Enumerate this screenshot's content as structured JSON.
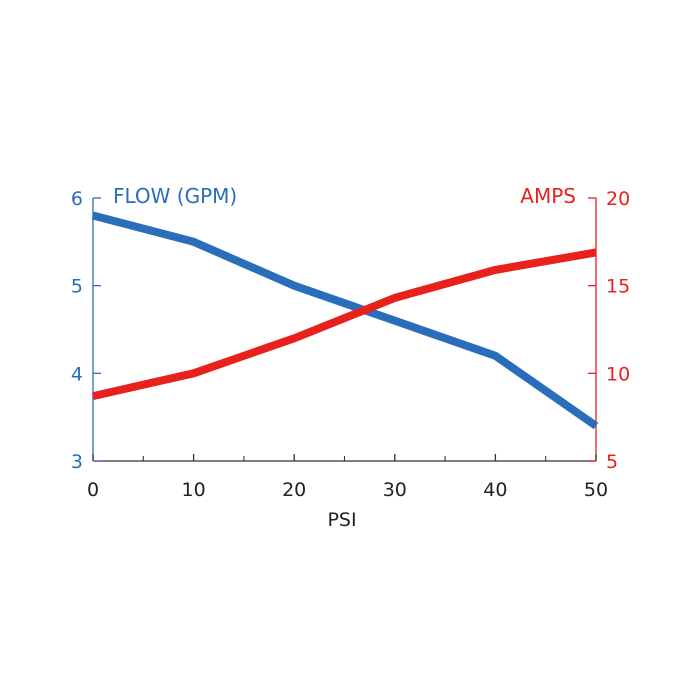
{
  "chart_data": {
    "type": "line",
    "xlabel": "PSI",
    "left_axis_label": "FLOW (GPM)",
    "right_axis_label": "AMPS",
    "x_ticks": [
      0,
      10,
      20,
      30,
      40,
      50
    ],
    "x_tick_labels": [
      "0",
      "10",
      "20",
      "30",
      "40",
      "50"
    ],
    "xlim": [
      0,
      50
    ],
    "left_ylim": [
      3,
      6
    ],
    "left_y_ticks": [
      3,
      4,
      5,
      6
    ],
    "left_y_tick_labels": [
      "3",
      "4",
      "5",
      "6"
    ],
    "right_ylim": [
      5,
      20
    ],
    "right_y_ticks": [
      5,
      10,
      15,
      20
    ],
    "right_y_tick_labels": [
      "5",
      "10",
      "15",
      "20"
    ],
    "grid": false,
    "colors": {
      "flow": "#2a6ebb",
      "amps": "#e8211d"
    },
    "series": [
      {
        "name": "FLOW (GPM)",
        "axis": "left",
        "x": [
          0,
          10,
          20,
          30,
          40,
          50
        ],
        "values": [
          5.8,
          5.5,
          5.0,
          4.6,
          4.2,
          3.4
        ]
      },
      {
        "name": "AMPS",
        "axis": "right",
        "x": [
          0,
          10,
          20,
          30,
          40,
          50
        ],
        "values": [
          8.7,
          10.0,
          12.0,
          14.3,
          15.9,
          16.9
        ]
      }
    ]
  }
}
